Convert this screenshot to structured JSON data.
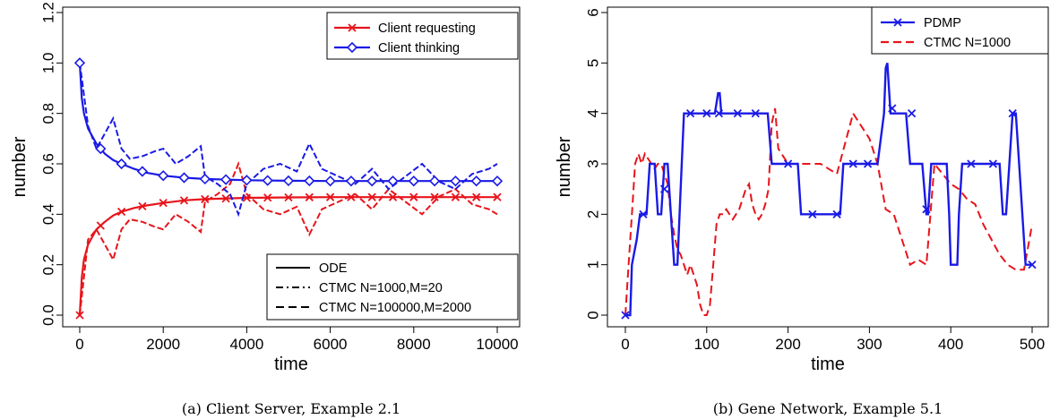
{
  "chart_data": [
    {
      "type": "line",
      "caption": "(a) Client Server, Example 2.1",
      "xlabel": "time",
      "ylabel": "number",
      "xlim": [
        0,
        10000
      ],
      "ylim": [
        0,
        1.2
      ],
      "xticks": [
        "0",
        "2000",
        "4000",
        "6000",
        "8000",
        "10000"
      ],
      "yticks": [
        "0.0",
        "0.2",
        "0.4",
        "0.6",
        "0.8",
        "1.0",
        "1.2"
      ],
      "legend_series": {
        "placement": "top-right",
        "entries": [
          {
            "label": "Client requesting",
            "color": "#e8141b",
            "marker": "x"
          },
          {
            "label": "Client thinking",
            "color": "#1a1ae6",
            "marker": "diamond"
          }
        ]
      },
      "legend_methods": {
        "placement": "bottom-right",
        "entries": [
          {
            "label": "ODE",
            "dash": "solid"
          },
          {
            "label": "CTMC N=1000,M=20",
            "dash": "dashdot"
          },
          {
            "label": "CTMC N=100000,M=2000",
            "dash": "dashed"
          }
        ]
      },
      "series": [
        {
          "name": "Client requesting",
          "color": "#e8141b",
          "x": [
            0,
            50,
            100,
            200,
            400,
            600,
            800,
            1000,
            1300,
            1600,
            2000,
            2500,
            3000,
            4000,
            5000,
            6000,
            8000,
            10000
          ],
          "ode": [
            0.0,
            0.15,
            0.22,
            0.28,
            0.34,
            0.37,
            0.395,
            0.41,
            0.425,
            0.435,
            0.445,
            0.455,
            0.46,
            0.465,
            0.467,
            0.468,
            0.468,
            0.468
          ]
        },
        {
          "name": "Client thinking",
          "color": "#1a1ae6",
          "x": [
            0,
            50,
            100,
            200,
            400,
            600,
            800,
            1000,
            1300,
            1600,
            2000,
            2500,
            3000,
            4000,
            5000,
            6000,
            8000,
            10000
          ],
          "ode": [
            1.0,
            0.86,
            0.8,
            0.74,
            0.68,
            0.64,
            0.615,
            0.6,
            0.58,
            0.565,
            0.553,
            0.545,
            0.54,
            0.535,
            0.533,
            0.532,
            0.532,
            0.532
          ]
        }
      ],
      "ctmc_paths": {
        "Client thinking": {
          "x": [
            0,
            200,
            400,
            600,
            800,
            1000,
            1200,
            1500,
            1800,
            2000,
            2300,
            2600,
            2900,
            3000,
            3300,
            3600,
            3800,
            4000,
            4400,
            4800,
            5200,
            5500,
            5800,
            6200,
            6600,
            7000,
            7400,
            7800,
            8200,
            8600,
            9000,
            9400,
            9800,
            10000
          ],
          "y": [
            1.0,
            0.75,
            0.66,
            0.72,
            0.78,
            0.66,
            0.62,
            0.63,
            0.65,
            0.66,
            0.6,
            0.63,
            0.67,
            0.55,
            0.52,
            0.48,
            0.4,
            0.52,
            0.58,
            0.6,
            0.57,
            0.68,
            0.58,
            0.55,
            0.52,
            0.58,
            0.5,
            0.55,
            0.6,
            0.53,
            0.5,
            0.56,
            0.58,
            0.6
          ]
        },
        "Client requesting": {
          "x": [
            0,
            200,
            400,
            600,
            800,
            1000,
            1200,
            1500,
            1800,
            2000,
            2300,
            2600,
            2900,
            3000,
            3300,
            3600,
            3800,
            4000,
            4400,
            4800,
            5200,
            5500,
            5800,
            6200,
            6600,
            7000,
            7400,
            7800,
            8200,
            8600,
            9000,
            9400,
            9800,
            10000
          ],
          "y": [
            0.0,
            0.3,
            0.34,
            0.28,
            0.22,
            0.34,
            0.38,
            0.37,
            0.35,
            0.34,
            0.4,
            0.37,
            0.33,
            0.45,
            0.48,
            0.52,
            0.6,
            0.48,
            0.42,
            0.4,
            0.43,
            0.32,
            0.42,
            0.45,
            0.48,
            0.42,
            0.5,
            0.45,
            0.4,
            0.47,
            0.5,
            0.44,
            0.42,
            0.4
          ]
        }
      }
    },
    {
      "type": "line",
      "caption": "(b) Gene Network, Example 5.1",
      "xlabel": "time",
      "ylabel": "number",
      "xlim": [
        0,
        500
      ],
      "ylim": [
        0,
        6
      ],
      "xticks": [
        "0",
        "100",
        "200",
        "300",
        "400",
        "500"
      ],
      "yticks": [
        "0",
        "1",
        "2",
        "3",
        "4",
        "5",
        "6"
      ],
      "legend": {
        "placement": "top-right",
        "entries": [
          {
            "label": "PDMP",
            "color": "#1a1ae6",
            "dash": "solid",
            "marker": "x"
          },
          {
            "label": "CTMC N=1000",
            "color": "#e8141b",
            "dash": "dashed"
          }
        ]
      },
      "series": [
        {
          "name": "PDMP",
          "color": "#1a1ae6",
          "x": [
            0,
            6,
            8,
            14,
            18,
            22,
            26,
            30,
            36,
            40,
            44,
            48,
            52,
            56,
            60,
            64,
            68,
            72,
            76,
            80,
            110,
            114,
            116,
            118,
            120,
            170,
            175,
            180,
            200,
            204,
            208,
            212,
            216,
            220,
            260,
            264,
            268,
            272,
            300,
            310,
            314,
            318,
            320,
            322,
            324,
            326,
            330,
            345,
            350,
            355,
            360,
            365,
            370,
            372,
            376,
            380,
            395,
            398,
            400,
            404,
            408,
            410,
            414,
            418,
            422,
            460,
            464,
            468,
            472,
            476,
            480,
            484,
            488,
            492,
            496,
            500
          ],
          "y": [
            0,
            0,
            1,
            1.5,
            2,
            2,
            2,
            3,
            3,
            2,
            2,
            3,
            3,
            2,
            1,
            1,
            2.5,
            4,
            4,
            4,
            4,
            4.4,
            4.4,
            4,
            4,
            4,
            4,
            3,
            3,
            3,
            3,
            3,
            2,
            2,
            2,
            2,
            3,
            3,
            3,
            3,
            3.5,
            4,
            4.9,
            5,
            4.5,
            4,
            4,
            4,
            3,
            3,
            3,
            3,
            2,
            2,
            3,
            3,
            3,
            2,
            1,
            1,
            1,
            2,
            3,
            3,
            3,
            3,
            2,
            2,
            3,
            4,
            4,
            3,
            2,
            1,
            1,
            1
          ]
        }
      ],
      "ctmc_path": {
        "name": "CTMC N=1000",
        "color": "#e8141b",
        "x": [
          0,
          4,
          8,
          12,
          16,
          20,
          24,
          28,
          32,
          36,
          40,
          44,
          48,
          52,
          56,
          60,
          64,
          68,
          72,
          76,
          80,
          84,
          88,
          92,
          96,
          100,
          104,
          108,
          112,
          116,
          120,
          124,
          128,
          132,
          136,
          140,
          144,
          148,
          152,
          156,
          160,
          164,
          168,
          172,
          176,
          180,
          184,
          188,
          192,
          196,
          200,
          220,
          240,
          260,
          280,
          300,
          310,
          320,
          330,
          340,
          350,
          360,
          370,
          380,
          390,
          400,
          410,
          420,
          430,
          440,
          450,
          460,
          470,
          480,
          490,
          500
        ],
        "y": [
          0,
          1,
          2,
          3,
          3.2,
          3,
          3.2,
          3.1,
          3,
          2.9,
          3,
          3,
          2.8,
          2.6,
          2,
          1.6,
          1.3,
          1.2,
          1,
          0.8,
          1,
          0.8,
          0.6,
          0.2,
          0,
          0,
          0.2,
          1,
          1.8,
          2,
          2,
          2.1,
          2,
          1.9,
          2,
          2.1,
          2.3,
          2.5,
          2.6,
          2.2,
          2,
          1.9,
          2,
          2.2,
          2.5,
          3.8,
          4.1,
          3.3,
          3.2,
          3.1,
          3,
          3,
          3,
          2.8,
          4,
          3.5,
          3,
          2.1,
          2,
          1.5,
          1,
          1.1,
          1,
          3,
          2.8,
          2.6,
          2.5,
          2.3,
          2.2,
          1.8,
          1.5,
          1.2,
          1,
          0.9,
          0.9,
          1.8
        ]
      }
    }
  ]
}
